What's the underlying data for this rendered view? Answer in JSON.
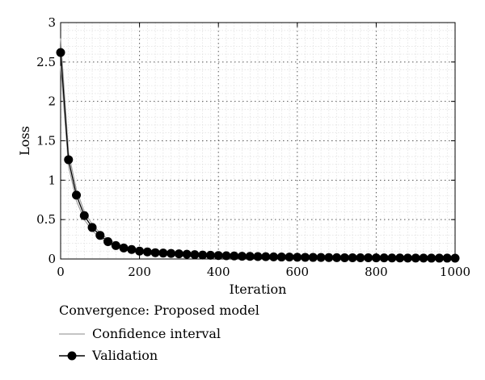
{
  "chart_data": {
    "type": "line",
    "title": "",
    "xlabel": "Iteration",
    "ylabel": "Loss",
    "xlim": [
      0,
      1000
    ],
    "ylim": [
      0,
      3
    ],
    "xticks": [
      0,
      200,
      400,
      600,
      800,
      1000
    ],
    "xtick_labels": [
      "0",
      "200",
      "400",
      "600",
      "800",
      "1000"
    ],
    "yticks": [
      0,
      0.5,
      1,
      1.5,
      2,
      2.5,
      3
    ],
    "ytick_labels": [
      "0",
      "0.5",
      "1",
      "1.5",
      "2",
      "2.5",
      "3"
    ],
    "grid": true,
    "legend_title": "Convergence: Proposed model",
    "legend_position": "bottom-left, below plot",
    "series": [
      {
        "name": "Confidence interval",
        "style": "thin line",
        "color": "#a0a0a0",
        "x": [
          0,
          20,
          40,
          60,
          80,
          100,
          120,
          140,
          160,
          180,
          200,
          250,
          300,
          400,
          500,
          600,
          700,
          800,
          900,
          1000
        ],
        "y_upper": [
          2.8,
          1.35,
          0.88,
          0.6,
          0.44,
          0.33,
          0.25,
          0.2,
          0.16,
          0.13,
          0.11,
          0.08,
          0.06,
          0.045,
          0.03,
          0.025,
          0.02,
          0.018,
          0.015,
          0.013
        ],
        "y_lower": [
          2.45,
          1.18,
          0.74,
          0.5,
          0.36,
          0.27,
          0.2,
          0.15,
          0.12,
          0.1,
          0.08,
          0.055,
          0.04,
          0.025,
          0.015,
          0.012,
          0.01,
          0.008,
          0.007,
          0.006
        ]
      },
      {
        "name": "Validation",
        "style": "line with filled circle markers",
        "color": "#000000",
        "x": [
          0,
          20,
          40,
          60,
          80,
          100,
          120,
          140,
          160,
          180,
          200,
          220,
          240,
          260,
          280,
          300,
          320,
          340,
          360,
          380,
          400,
          420,
          440,
          460,
          480,
          500,
          520,
          540,
          560,
          580,
          600,
          620,
          640,
          660,
          680,
          700,
          720,
          740,
          760,
          780,
          800,
          820,
          840,
          860,
          880,
          900,
          920,
          940,
          960,
          980,
          1000
        ],
        "y": [
          2.62,
          1.26,
          0.81,
          0.55,
          0.4,
          0.3,
          0.22,
          0.17,
          0.14,
          0.12,
          0.1,
          0.09,
          0.08,
          0.075,
          0.07,
          0.065,
          0.06,
          0.055,
          0.05,
          0.047,
          0.044,
          0.041,
          0.038,
          0.035,
          0.033,
          0.031,
          0.029,
          0.027,
          0.025,
          0.024,
          0.022,
          0.021,
          0.02,
          0.019,
          0.018,
          0.017,
          0.016,
          0.016,
          0.015,
          0.015,
          0.014,
          0.014,
          0.013,
          0.013,
          0.012,
          0.012,
          0.012,
          0.011,
          0.011,
          0.011,
          0.01
        ]
      }
    ]
  }
}
